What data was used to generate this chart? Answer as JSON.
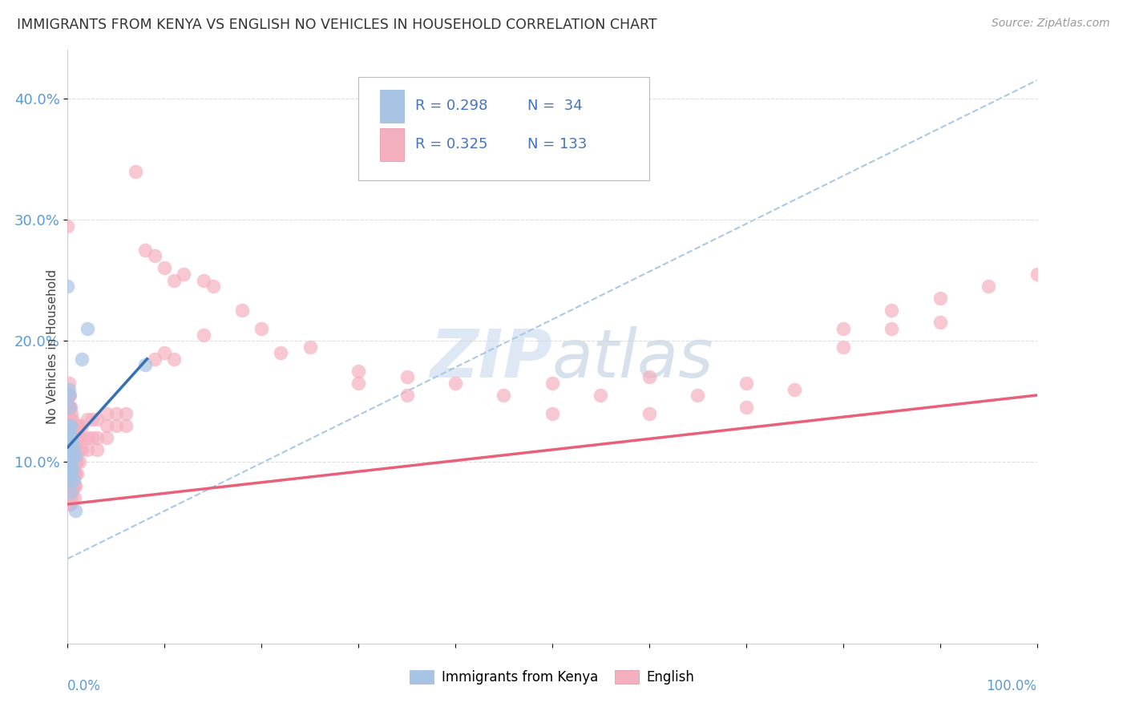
{
  "title": "IMMIGRANTS FROM KENYA VS ENGLISH NO VEHICLES IN HOUSEHOLD CORRELATION CHART",
  "source": "Source: ZipAtlas.com",
  "ylabel": "No Vehicles in Household",
  "yticks": [
    0.1,
    0.2,
    0.3,
    0.4
  ],
  "ytick_labels": [
    "10.0%",
    "20.0%",
    "30.0%",
    "40.0%"
  ],
  "xlim": [
    0.0,
    1.0
  ],
  "ylim": [
    -0.05,
    0.44
  ],
  "legend_r1": "R = 0.298",
  "legend_n1": "N =  34",
  "legend_r2": "R = 0.325",
  "legend_n2": "N = 133",
  "kenya_color": "#a8c4e5",
  "english_color": "#f5b0c0",
  "kenya_line_color": "#3570b5",
  "english_line_color": "#e8607a",
  "dashed_line_color": "#aac8e8",
  "legend_text_color": "#4472c4",
  "background_color": "#ffffff",
  "watermark_zip": "ZIP",
  "watermark_atlas": "atlas",
  "grid_color": "#d8d8d8",
  "axis_color": "#cccccc",
  "tick_color": "#5b9bd5",
  "kenya_line_x": [
    0.0,
    0.082
  ],
  "kenya_line_y": [
    0.112,
    0.185
  ],
  "english_line_x": [
    0.0,
    1.0
  ],
  "english_line_y": [
    0.065,
    0.155
  ],
  "dashed_line_x": [
    0.0,
    1.0
  ],
  "dashed_line_y": [
    0.02,
    0.415
  ],
  "kenya_points": [
    [
      0.0,
      0.245
    ],
    [
      0.001,
      0.16
    ],
    [
      0.001,
      0.155
    ],
    [
      0.001,
      0.145
    ],
    [
      0.001,
      0.13
    ],
    [
      0.002,
      0.125
    ],
    [
      0.002,
      0.12
    ],
    [
      0.002,
      0.115
    ],
    [
      0.002,
      0.11
    ],
    [
      0.002,
      0.105
    ],
    [
      0.002,
      0.1
    ],
    [
      0.002,
      0.095
    ],
    [
      0.003,
      0.13
    ],
    [
      0.003,
      0.12
    ],
    [
      0.003,
      0.115
    ],
    [
      0.003,
      0.11
    ],
    [
      0.003,
      0.105
    ],
    [
      0.003,
      0.095
    ],
    [
      0.003,
      0.085
    ],
    [
      0.003,
      0.075
    ],
    [
      0.004,
      0.12
    ],
    [
      0.004,
      0.11
    ],
    [
      0.004,
      0.1
    ],
    [
      0.004,
      0.09
    ],
    [
      0.005,
      0.115
    ],
    [
      0.005,
      0.105
    ],
    [
      0.005,
      0.095
    ],
    [
      0.006,
      0.11
    ],
    [
      0.006,
      0.085
    ],
    [
      0.008,
      0.105
    ],
    [
      0.008,
      0.06
    ],
    [
      0.015,
      0.185
    ],
    [
      0.02,
      0.21
    ],
    [
      0.08,
      0.18
    ]
  ],
  "english_points": [
    [
      0.0,
      0.295
    ],
    [
      0.001,
      0.165
    ],
    [
      0.001,
      0.155
    ],
    [
      0.001,
      0.145
    ],
    [
      0.001,
      0.135
    ],
    [
      0.001,
      0.125
    ],
    [
      0.001,
      0.115
    ],
    [
      0.001,
      0.105
    ],
    [
      0.001,
      0.095
    ],
    [
      0.001,
      0.085
    ],
    [
      0.001,
      0.075
    ],
    [
      0.002,
      0.155
    ],
    [
      0.002,
      0.145
    ],
    [
      0.002,
      0.135
    ],
    [
      0.002,
      0.125
    ],
    [
      0.002,
      0.115
    ],
    [
      0.002,
      0.105
    ],
    [
      0.002,
      0.095
    ],
    [
      0.002,
      0.085
    ],
    [
      0.002,
      0.075
    ],
    [
      0.002,
      0.065
    ],
    [
      0.003,
      0.145
    ],
    [
      0.003,
      0.135
    ],
    [
      0.003,
      0.125
    ],
    [
      0.003,
      0.115
    ],
    [
      0.003,
      0.105
    ],
    [
      0.003,
      0.095
    ],
    [
      0.003,
      0.085
    ],
    [
      0.003,
      0.075
    ],
    [
      0.003,
      0.065
    ],
    [
      0.004,
      0.14
    ],
    [
      0.004,
      0.13
    ],
    [
      0.004,
      0.12
    ],
    [
      0.004,
      0.11
    ],
    [
      0.004,
      0.1
    ],
    [
      0.004,
      0.09
    ],
    [
      0.004,
      0.08
    ],
    [
      0.004,
      0.07
    ],
    [
      0.005,
      0.135
    ],
    [
      0.005,
      0.125
    ],
    [
      0.005,
      0.115
    ],
    [
      0.005,
      0.105
    ],
    [
      0.005,
      0.095
    ],
    [
      0.005,
      0.085
    ],
    [
      0.005,
      0.075
    ],
    [
      0.006,
      0.13
    ],
    [
      0.006,
      0.12
    ],
    [
      0.006,
      0.11
    ],
    [
      0.006,
      0.1
    ],
    [
      0.006,
      0.09
    ],
    [
      0.006,
      0.08
    ],
    [
      0.007,
      0.13
    ],
    [
      0.007,
      0.12
    ],
    [
      0.007,
      0.11
    ],
    [
      0.007,
      0.1
    ],
    [
      0.007,
      0.09
    ],
    [
      0.007,
      0.08
    ],
    [
      0.007,
      0.07
    ],
    [
      0.008,
      0.13
    ],
    [
      0.008,
      0.12
    ],
    [
      0.008,
      0.11
    ],
    [
      0.008,
      0.1
    ],
    [
      0.008,
      0.09
    ],
    [
      0.008,
      0.08
    ],
    [
      0.009,
      0.13
    ],
    [
      0.009,
      0.12
    ],
    [
      0.009,
      0.11
    ],
    [
      0.009,
      0.1
    ],
    [
      0.01,
      0.13
    ],
    [
      0.01,
      0.12
    ],
    [
      0.01,
      0.11
    ],
    [
      0.01,
      0.1
    ],
    [
      0.01,
      0.09
    ],
    [
      0.012,
      0.13
    ],
    [
      0.012,
      0.12
    ],
    [
      0.012,
      0.11
    ],
    [
      0.012,
      0.1
    ],
    [
      0.015,
      0.13
    ],
    [
      0.015,
      0.12
    ],
    [
      0.015,
      0.11
    ],
    [
      0.02,
      0.135
    ],
    [
      0.02,
      0.12
    ],
    [
      0.02,
      0.11
    ],
    [
      0.025,
      0.135
    ],
    [
      0.025,
      0.12
    ],
    [
      0.03,
      0.135
    ],
    [
      0.03,
      0.12
    ],
    [
      0.03,
      0.11
    ],
    [
      0.04,
      0.14
    ],
    [
      0.04,
      0.13
    ],
    [
      0.04,
      0.12
    ],
    [
      0.05,
      0.14
    ],
    [
      0.05,
      0.13
    ],
    [
      0.06,
      0.14
    ],
    [
      0.06,
      0.13
    ],
    [
      0.07,
      0.34
    ],
    [
      0.08,
      0.275
    ],
    [
      0.09,
      0.27
    ],
    [
      0.09,
      0.185
    ],
    [
      0.1,
      0.26
    ],
    [
      0.1,
      0.19
    ],
    [
      0.11,
      0.25
    ],
    [
      0.11,
      0.185
    ],
    [
      0.12,
      0.255
    ],
    [
      0.14,
      0.25
    ],
    [
      0.14,
      0.205
    ],
    [
      0.15,
      0.245
    ],
    [
      0.18,
      0.225
    ],
    [
      0.2,
      0.21
    ],
    [
      0.22,
      0.19
    ],
    [
      0.25,
      0.195
    ],
    [
      0.3,
      0.175
    ],
    [
      0.3,
      0.165
    ],
    [
      0.35,
      0.17
    ],
    [
      0.35,
      0.155
    ],
    [
      0.4,
      0.165
    ],
    [
      0.45,
      0.155
    ],
    [
      0.5,
      0.165
    ],
    [
      0.5,
      0.14
    ],
    [
      0.55,
      0.155
    ],
    [
      0.6,
      0.17
    ],
    [
      0.6,
      0.14
    ],
    [
      0.65,
      0.155
    ],
    [
      0.7,
      0.165
    ],
    [
      0.7,
      0.145
    ],
    [
      0.75,
      0.16
    ],
    [
      0.8,
      0.21
    ],
    [
      0.8,
      0.195
    ],
    [
      0.85,
      0.225
    ],
    [
      0.85,
      0.21
    ],
    [
      0.9,
      0.235
    ],
    [
      0.9,
      0.215
    ],
    [
      0.95,
      0.245
    ],
    [
      1.0,
      0.255
    ]
  ]
}
